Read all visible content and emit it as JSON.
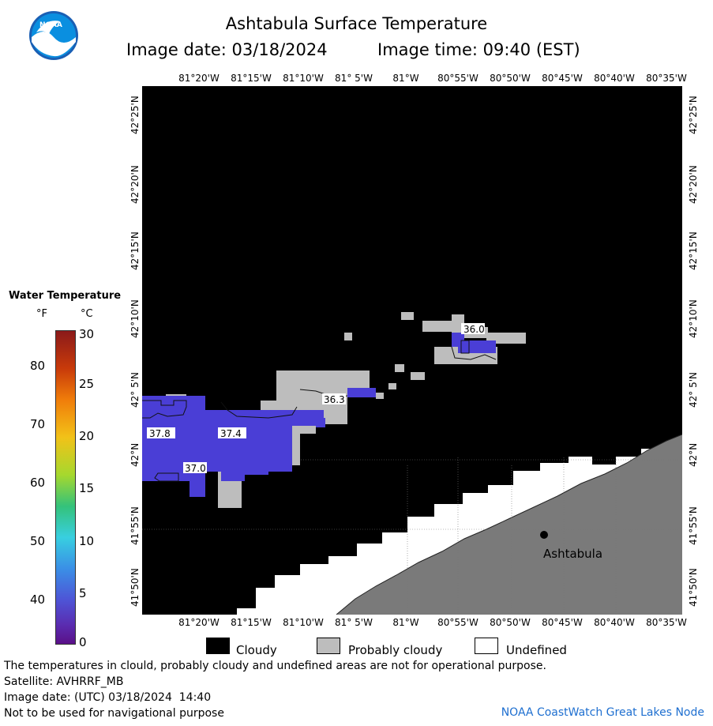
{
  "header": {
    "title": "Ashtabula Surface Temperature",
    "image_date": "Image date: 03/18/2024",
    "image_time": "Image time: 09:40 (EST)"
  },
  "logo": {
    "text": "NOAA"
  },
  "axes": {
    "lon_ticks": [
      "81°20'W",
      "81°15'W",
      "81°10'W",
      "81° 5'W",
      "81°W",
      "80°55'W",
      "80°50'W",
      "80°45'W",
      "80°40'W",
      "80°35'W"
    ],
    "lat_ticks": [
      "42°25'N",
      "42°20'N",
      "42°15'N",
      "42°10'N",
      "42° 5'N",
      "42°N",
      "41°55'N",
      "41°50'N"
    ]
  },
  "colorbar": {
    "title": "Water Temperature",
    "unit_f": "°F",
    "unit_c": "°C",
    "f_labels": [
      "80",
      "70",
      "60",
      "50",
      "40"
    ],
    "c_labels": [
      "30",
      "25",
      "20",
      "15",
      "10",
      "5",
      "0"
    ]
  },
  "map": {
    "city": "Ashtabula",
    "contour_labels": [
      "36.0",
      "36.3",
      "37.8",
      "37.4",
      "37.0"
    ],
    "colors": {
      "cloudy": "#000000",
      "probably_cloudy": "#bdbdbd",
      "undefined": "#ffffff",
      "land": "#7a7a7a",
      "water": "#4a3ed6"
    }
  },
  "legend": {
    "cloudy": "Cloudy",
    "probably_cloudy": "Probably cloudy",
    "undefined": "Undefined"
  },
  "footer": {
    "line1": "The temperatures in clould, probably cloudy and undefined areas are not for operational purpose.",
    "line2": "Satellite: AVHRRF_MB",
    "line3": "Image date: (UTC) 03/18/2024  14:40",
    "line4": "Not to be used for navigational purpose",
    "credit": "NOAA CoastWatch Great Lakes Node"
  }
}
